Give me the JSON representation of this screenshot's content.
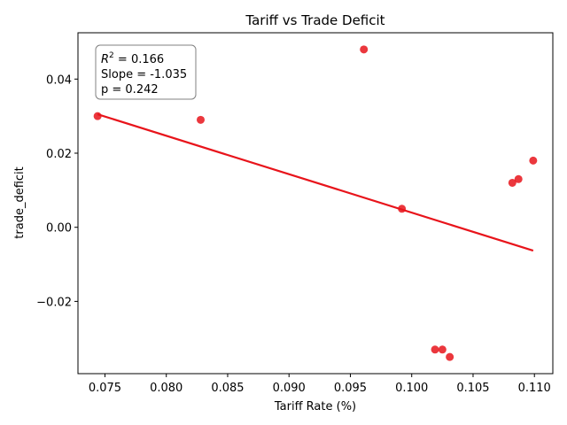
{
  "chart_data": {
    "type": "scatter",
    "title": "Tariff vs Trade Deficit",
    "xlabel": "Tariff Rate (%)",
    "ylabel": "trade_deficit",
    "xlim": [
      0.0728,
      0.1115
    ],
    "ylim": [
      -0.0395,
      0.0525
    ],
    "x_ticks": [
      0.075,
      0.08,
      0.085,
      0.09,
      0.095,
      0.1,
      0.105,
      0.11
    ],
    "x_tick_labels": [
      "0.075",
      "0.080",
      "0.085",
      "0.090",
      "0.095",
      "0.100",
      "0.105",
      "0.110"
    ],
    "y_ticks": [
      -0.02,
      0.0,
      0.02,
      0.04
    ],
    "y_tick_labels": [
      "−0.02",
      "0.00",
      "0.02",
      "0.04"
    ],
    "grid": false,
    "points": [
      {
        "x": 0.0744,
        "y": 0.03
      },
      {
        "x": 0.0828,
        "y": 0.029
      },
      {
        "x": 0.0961,
        "y": 0.048
      },
      {
        "x": 0.0992,
        "y": 0.005
      },
      {
        "x": 0.1019,
        "y": -0.033
      },
      {
        "x": 0.1025,
        "y": -0.033
      },
      {
        "x": 0.1031,
        "y": -0.035
      },
      {
        "x": 0.1082,
        "y": 0.012
      },
      {
        "x": 0.1087,
        "y": 0.013
      },
      {
        "x": 0.1099,
        "y": 0.018
      }
    ],
    "fit_line": {
      "x": [
        0.0744,
        0.1099
      ],
      "y": [
        0.0305,
        -0.0063
      ]
    },
    "point_color": "#e8141b",
    "line_color": "#e8141b",
    "stats_box": {
      "r2_symbol": "R",
      "r2_superscript": "2",
      "r2_value": " = 0.166",
      "slope": "Slope = -1.035",
      "p": "p = 0.242",
      "placement": "top-left"
    }
  }
}
